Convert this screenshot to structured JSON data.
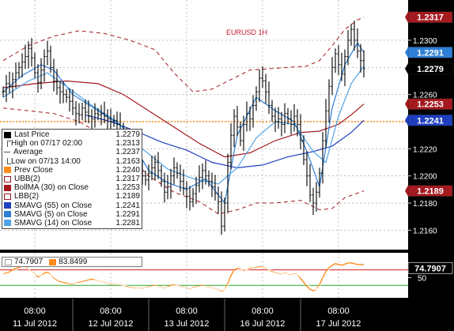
{
  "chart_data": [
    {
      "type": "line",
      "title": "EURUSD 1H",
      "x_tick_labels": [
        {
          "time": "08:00",
          "date": "11 Jul 2012"
        },
        {
          "time": "08:00",
          "date": "12 Jul 2012"
        },
        {
          "time": "08:00",
          "date": "13 Jul 2012"
        },
        {
          "time": "08:00",
          "date": "16 Jul 2012"
        },
        {
          "time": "08:00",
          "date": "17 Jul 2012"
        }
      ],
      "y_ticks": [
        "1.2160",
        "1.2180",
        "1.2200",
        "1.2220",
        "1.2240",
        "1.2260",
        "1.2280",
        "1.2300"
      ],
      "ylim": [
        1.2148,
        1.2325
      ],
      "grid": true,
      "legend_position": "left",
      "right_axis_tags": [
        {
          "value": "1.2317",
          "bg": "#a31a1f",
          "fg": "#ffffff"
        },
        {
          "value": "1.2291",
          "bg": "#2e7fd6",
          "fg": "#ffffff"
        },
        {
          "value": "1.2279",
          "bg": "#000000",
          "fg": "#ffffff"
        },
        {
          "value": "1.2253",
          "bg": "#a31a1f",
          "fg": "#ffffff"
        },
        {
          "value": "1.2241",
          "bg": "#1f3fbf",
          "fg": "#ffffff"
        },
        {
          "value": "1.2189",
          "bg": "#a31a1f",
          "fg": "#ffffff"
        }
      ],
      "legend": [
        {
          "label": "Last Price",
          "value": "1.2279",
          "swatch": "#000000",
          "kind": "box"
        },
        {
          "label": "High on 07/17 02:00",
          "value": "1.2313",
          "swatch": "#555555",
          "kind": "high"
        },
        {
          "label": "Average",
          "value": "1.2237",
          "swatch": "#555555",
          "kind": "avg"
        },
        {
          "label": "Low on 07/13 14:00",
          "value": "1.2163",
          "swatch": "#555555",
          "kind": "low"
        },
        {
          "label": "Prev Close",
          "value": "1.2240",
          "swatch": "#ff8c1a",
          "kind": "box"
        },
        {
          "label": "UBB(2)",
          "value": "1.2317",
          "swatch": "#ffffff",
          "kind": "outline"
        },
        {
          "label": "BollMA (30) on Close",
          "value": "1.2253",
          "swatch": "#a31a1f",
          "kind": "box"
        },
        {
          "label": "LBB(2)",
          "value": "1.2189",
          "swatch": "#ffffff",
          "kind": "outline"
        },
        {
          "label": "SMAVG (55) on Close",
          "value": "1.2241",
          "swatch": "#1f3fbf",
          "kind": "box"
        },
        {
          "label": "SMAVG (5) on Close",
          "value": "1.2291",
          "swatch": "#2e7fd6",
          "kind": "box"
        },
        {
          "label": "SMAVG (14) on Close",
          "value": "1.2281",
          "swatch": "#4fa3e6",
          "kind": "box"
        }
      ],
      "prev_close": 1.224,
      "series": [
        {
          "name": "Last Price",
          "kind": "ohlc",
          "color": "#000000",
          "close": [
            1.2262,
            1.2268,
            1.2266,
            1.2271,
            1.2276,
            1.228,
            1.2284,
            1.2288,
            1.2294,
            1.2287,
            1.2276,
            1.2269,
            1.2278,
            1.2288,
            1.2292,
            1.228,
            1.227,
            1.2265,
            1.2262,
            1.226,
            1.2258,
            1.2255,
            1.225,
            1.2246,
            1.2245,
            1.225,
            1.2247,
            1.2244,
            1.2242,
            1.2246,
            1.2245,
            1.2246,
            1.2244,
            1.2242,
            1.224,
            1.2241,
            1.2238,
            1.2234,
            1.2228,
            1.2222,
            1.2216,
            1.221,
            1.2207,
            1.2204,
            1.22,
            1.2197,
            1.2202,
            1.2206,
            1.221,
            1.2204,
            1.2196,
            1.2188,
            1.2192,
            1.22,
            1.2206,
            1.2202,
            1.2196,
            1.2191,
            1.2185,
            1.2181,
            1.2187,
            1.2193,
            1.2199,
            1.2204,
            1.22,
            1.2196,
            1.2192,
            1.2187,
            1.2181,
            1.2163,
            1.218,
            1.221,
            1.223,
            1.2244,
            1.2236,
            1.2226,
            1.2238,
            1.2246,
            1.2242,
            1.2252,
            1.2262,
            1.2272,
            1.227,
            1.2262,
            1.2252,
            1.2244,
            1.224,
            1.2242,
            1.2238,
            1.2246,
            1.2242,
            1.2238,
            1.2244,
            1.2238,
            1.2226,
            1.2212,
            1.22,
            1.2186,
            1.218,
            1.2188,
            1.2202,
            1.2226,
            1.2248,
            1.2266,
            1.228,
            1.229,
            1.2282,
            1.2275,
            1.2288,
            1.23,
            1.2308,
            1.23,
            1.2292,
            1.2285,
            1.2279
          ]
        },
        {
          "name": "UBB(2)",
          "kind": "line",
          "color": "#a31a1f",
          "dash": true,
          "points": [
            [
              0,
              1.2285
            ],
            [
              8,
              1.2296
            ],
            [
              16,
              1.2303
            ],
            [
              24,
              1.2307
            ],
            [
              32,
              1.2305
            ],
            [
              40,
              1.23
            ],
            [
              48,
              1.2293
            ],
            [
              54,
              1.2276
            ],
            [
              60,
              1.2262
            ],
            [
              66,
              1.2264
            ],
            [
              72,
              1.2271
            ],
            [
              78,
              1.2278
            ],
            [
              84,
              1.2279
            ],
            [
              90,
              1.228
            ],
            [
              96,
              1.2281
            ],
            [
              100,
              1.2285
            ],
            [
              104,
              1.2296
            ],
            [
              108,
              1.2308
            ],
            [
              112,
              1.2315
            ],
            [
              114,
              1.2317
            ]
          ]
        },
        {
          "name": "BollMA (30) on Close",
          "kind": "line",
          "color": "#a31a1f",
          "points": [
            [
              0,
              1.2265
            ],
            [
              10,
              1.2268
            ],
            [
              20,
              1.227
            ],
            [
              30,
              1.2268
            ],
            [
              38,
              1.226
            ],
            [
              46,
              1.2248
            ],
            [
              54,
              1.2236
            ],
            [
              62,
              1.2224
            ],
            [
              70,
              1.2214
            ],
            [
              78,
              1.2217
            ],
            [
              86,
              1.2226
            ],
            [
              94,
              1.2232
            ],
            [
              100,
              1.2233
            ],
            [
              106,
              1.2238
            ],
            [
              110,
              1.2245
            ],
            [
              114,
              1.2253
            ]
          ]
        },
        {
          "name": "LBB(2)",
          "kind": "line",
          "color": "#a31a1f",
          "dash": true,
          "points": [
            [
              0,
              1.225
            ],
            [
              8,
              1.2248
            ],
            [
              16,
              1.2246
            ],
            [
              24,
              1.224
            ],
            [
              30,
              1.2232
            ],
            [
              38,
              1.2218
            ],
            [
              46,
              1.22
            ],
            [
              54,
              1.2188
            ],
            [
              62,
              1.2181
            ],
            [
              68,
              1.2172
            ],
            [
              74,
              1.2175
            ],
            [
              80,
              1.218
            ],
            [
              86,
              1.218
            ],
            [
              94,
              1.2182
            ],
            [
              100,
              1.2175
            ],
            [
              104,
              1.2176
            ],
            [
              108,
              1.2184
            ],
            [
              114,
              1.2189
            ]
          ]
        },
        {
          "name": "SMAVG (55) on Close",
          "kind": "line",
          "color": "#1f3fbf",
          "points": [
            [
              26,
              1.2245
            ],
            [
              34,
              1.224
            ],
            [
              42,
              1.2233
            ],
            [
              50,
              1.2225
            ],
            [
              58,
              1.2219
            ],
            [
              66,
              1.221
            ],
            [
              74,
              1.2206
            ],
            [
              82,
              1.2208
            ],
            [
              90,
              1.2214
            ],
            [
              98,
              1.2218
            ],
            [
              104,
              1.2222
            ],
            [
              110,
              1.2232
            ],
            [
              114,
              1.2241
            ]
          ]
        },
        {
          "name": "SMAVG (5) on Close",
          "kind": "line",
          "color": "#2e7fd6",
          "points": [
            [
              0,
              1.2262
            ],
            [
              6,
              1.2274
            ],
            [
              12,
              1.2282
            ],
            [
              16,
              1.2278
            ],
            [
              22,
              1.226
            ],
            [
              30,
              1.2248
            ],
            [
              38,
              1.2236
            ],
            [
              46,
              1.2204
            ],
            [
              52,
              1.2195
            ],
            [
              58,
              1.219
            ],
            [
              64,
              1.2198
            ],
            [
              70,
              1.218
            ],
            [
              74,
              1.223
            ],
            [
              80,
              1.2258
            ],
            [
              86,
              1.2248
            ],
            [
              92,
              1.224
            ],
            [
              96,
              1.2218
            ],
            [
              100,
              1.2192
            ],
            [
              104,
              1.225
            ],
            [
              108,
              1.2282
            ],
            [
              112,
              1.2298
            ],
            [
              114,
              1.2291
            ]
          ]
        },
        {
          "name": "SMAVG (14) on Close",
          "kind": "line",
          "color": "#4fa3e6",
          "points": [
            [
              0,
              1.2258
            ],
            [
              8,
              1.227
            ],
            [
              14,
              1.2276
            ],
            [
              20,
              1.2266
            ],
            [
              28,
              1.2252
            ],
            [
              36,
              1.224
            ],
            [
              44,
              1.222
            ],
            [
              52,
              1.2205
            ],
            [
              60,
              1.2198
            ],
            [
              68,
              1.2194
            ],
            [
              74,
              1.2206
            ],
            [
              80,
              1.2228
            ],
            [
              86,
              1.224
            ],
            [
              92,
              1.2238
            ],
            [
              98,
              1.2218
            ],
            [
              102,
              1.221
            ],
            [
              106,
              1.2244
            ],
            [
              110,
              1.2268
            ],
            [
              114,
              1.2281
            ]
          ]
        }
      ]
    },
    {
      "type": "line",
      "legend": [
        {
          "label": "74.7907",
          "swatch": "#ffffff"
        },
        {
          "label": "83.8499",
          "swatch": "#ff8c1a"
        }
      ],
      "y_ticks": [
        "50"
      ],
      "ylim": [
        0,
        110
      ],
      "right_axis_tags": [
        {
          "value": "74.7907",
          "bg": "#000000",
          "fg": "#ffffff"
        }
      ],
      "series": [
        {
          "name": "83.8499",
          "color": "#ff8c1a",
          "values": [
            60,
            62,
            65,
            70,
            74,
            76,
            80,
            78,
            72,
            66,
            60,
            52,
            55,
            62,
            64,
            58,
            50,
            44,
            40,
            38,
            36,
            35,
            34,
            36,
            38,
            40,
            42,
            44,
            46,
            44,
            42,
            40,
            38,
            36,
            34,
            34,
            33,
            32,
            30,
            28,
            26,
            25,
            24,
            24,
            23,
            24,
            26,
            28,
            30,
            28,
            26,
            24,
            26,
            30,
            32,
            30,
            28,
            26,
            24,
            22,
            24,
            26,
            28,
            30,
            28,
            26,
            24,
            22,
            20,
            15,
            20,
            35,
            55,
            70,
            74,
            72,
            68,
            70,
            74,
            75,
            76,
            78,
            77,
            74,
            70,
            66,
            64,
            62,
            60,
            62,
            60,
            58,
            60,
            58,
            48,
            38,
            28,
            20,
            16,
            20,
            32,
            50,
            66,
            76,
            82,
            86,
            84,
            82,
            85,
            88,
            88,
            86,
            84,
            84,
            83.85
          ]
        },
        {
          "name": "74.7907",
          "color": "#ffffff",
          "values": [
            58,
            60,
            62,
            66,
            70,
            73,
            76,
            76,
            72,
            66,
            60,
            55,
            55,
            58,
            60,
            58,
            52,
            46,
            42,
            40,
            38,
            36,
            35,
            35,
            36,
            38,
            40,
            42,
            43,
            43,
            42,
            40,
            38,
            36,
            35,
            34,
            33,
            32,
            30,
            29,
            27,
            26,
            25,
            24,
            24,
            24,
            25,
            27,
            28,
            28,
            26,
            25,
            25,
            28,
            30,
            30,
            28,
            26,
            24,
            23,
            23,
            25,
            27,
            28,
            28,
            26,
            24,
            22,
            20,
            17,
            20,
            30,
            48,
            62,
            70,
            71,
            69,
            70,
            72,
            74,
            75,
            76,
            76,
            74,
            71,
            68,
            65,
            63,
            61,
            61,
            60,
            59,
            59,
            58,
            52,
            44,
            34,
            26,
            20,
            20,
            28,
            42,
            58,
            70,
            77,
            80,
            80,
            79,
            80,
            82,
            83,
            82,
            80,
            78,
            74.79
          ]
        }
      ]
    }
  ]
}
